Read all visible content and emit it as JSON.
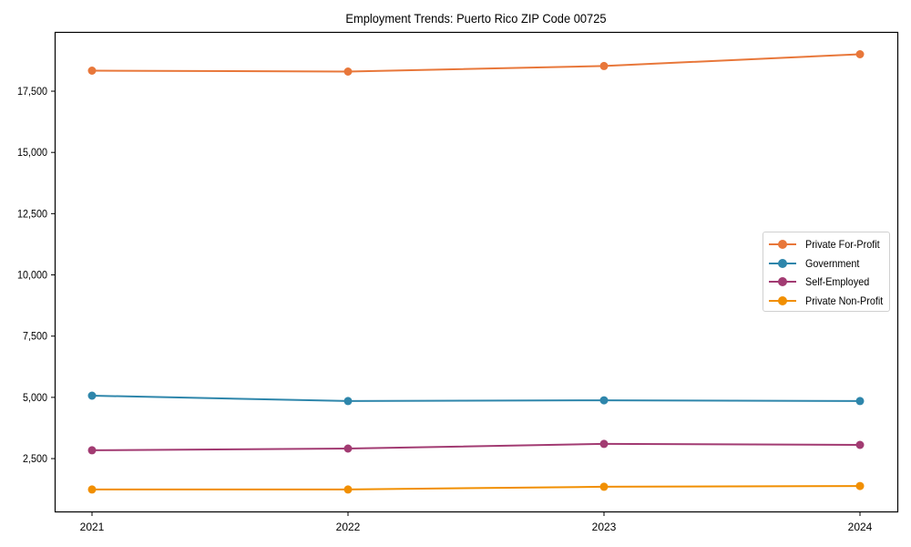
{
  "chart_data": {
    "type": "line",
    "title": "Employment Trends: Puerto Rico ZIP Code 00725",
    "xlabel": "",
    "ylabel": "",
    "x": [
      "2021",
      "2022",
      "2023",
      "2024"
    ],
    "ylim": [
      400,
      19700
    ],
    "yticks": [
      2500,
      5000,
      7500,
      10000,
      12500,
      15000,
      17500
    ],
    "ytick_labels": [
      "2,500",
      "5,000",
      "7,500",
      "10,000",
      "12,500",
      "15,000",
      "17,500"
    ],
    "grid": false,
    "legend_position": "center right",
    "series": [
      {
        "name": "Private For-Profit",
        "color": "#E8773A",
        "values": [
          18340,
          18300,
          18530,
          19010
        ]
      },
      {
        "name": "Government",
        "color": "#2E86AB",
        "values": [
          5070,
          4850,
          4880,
          4850
        ]
      },
      {
        "name": "Self-Employed",
        "color": "#A23B72",
        "values": [
          2840,
          2910,
          3100,
          3060
        ]
      },
      {
        "name": "Private Non-Profit",
        "color": "#F18F01",
        "values": [
          1240,
          1240,
          1350,
          1380
        ]
      }
    ]
  }
}
